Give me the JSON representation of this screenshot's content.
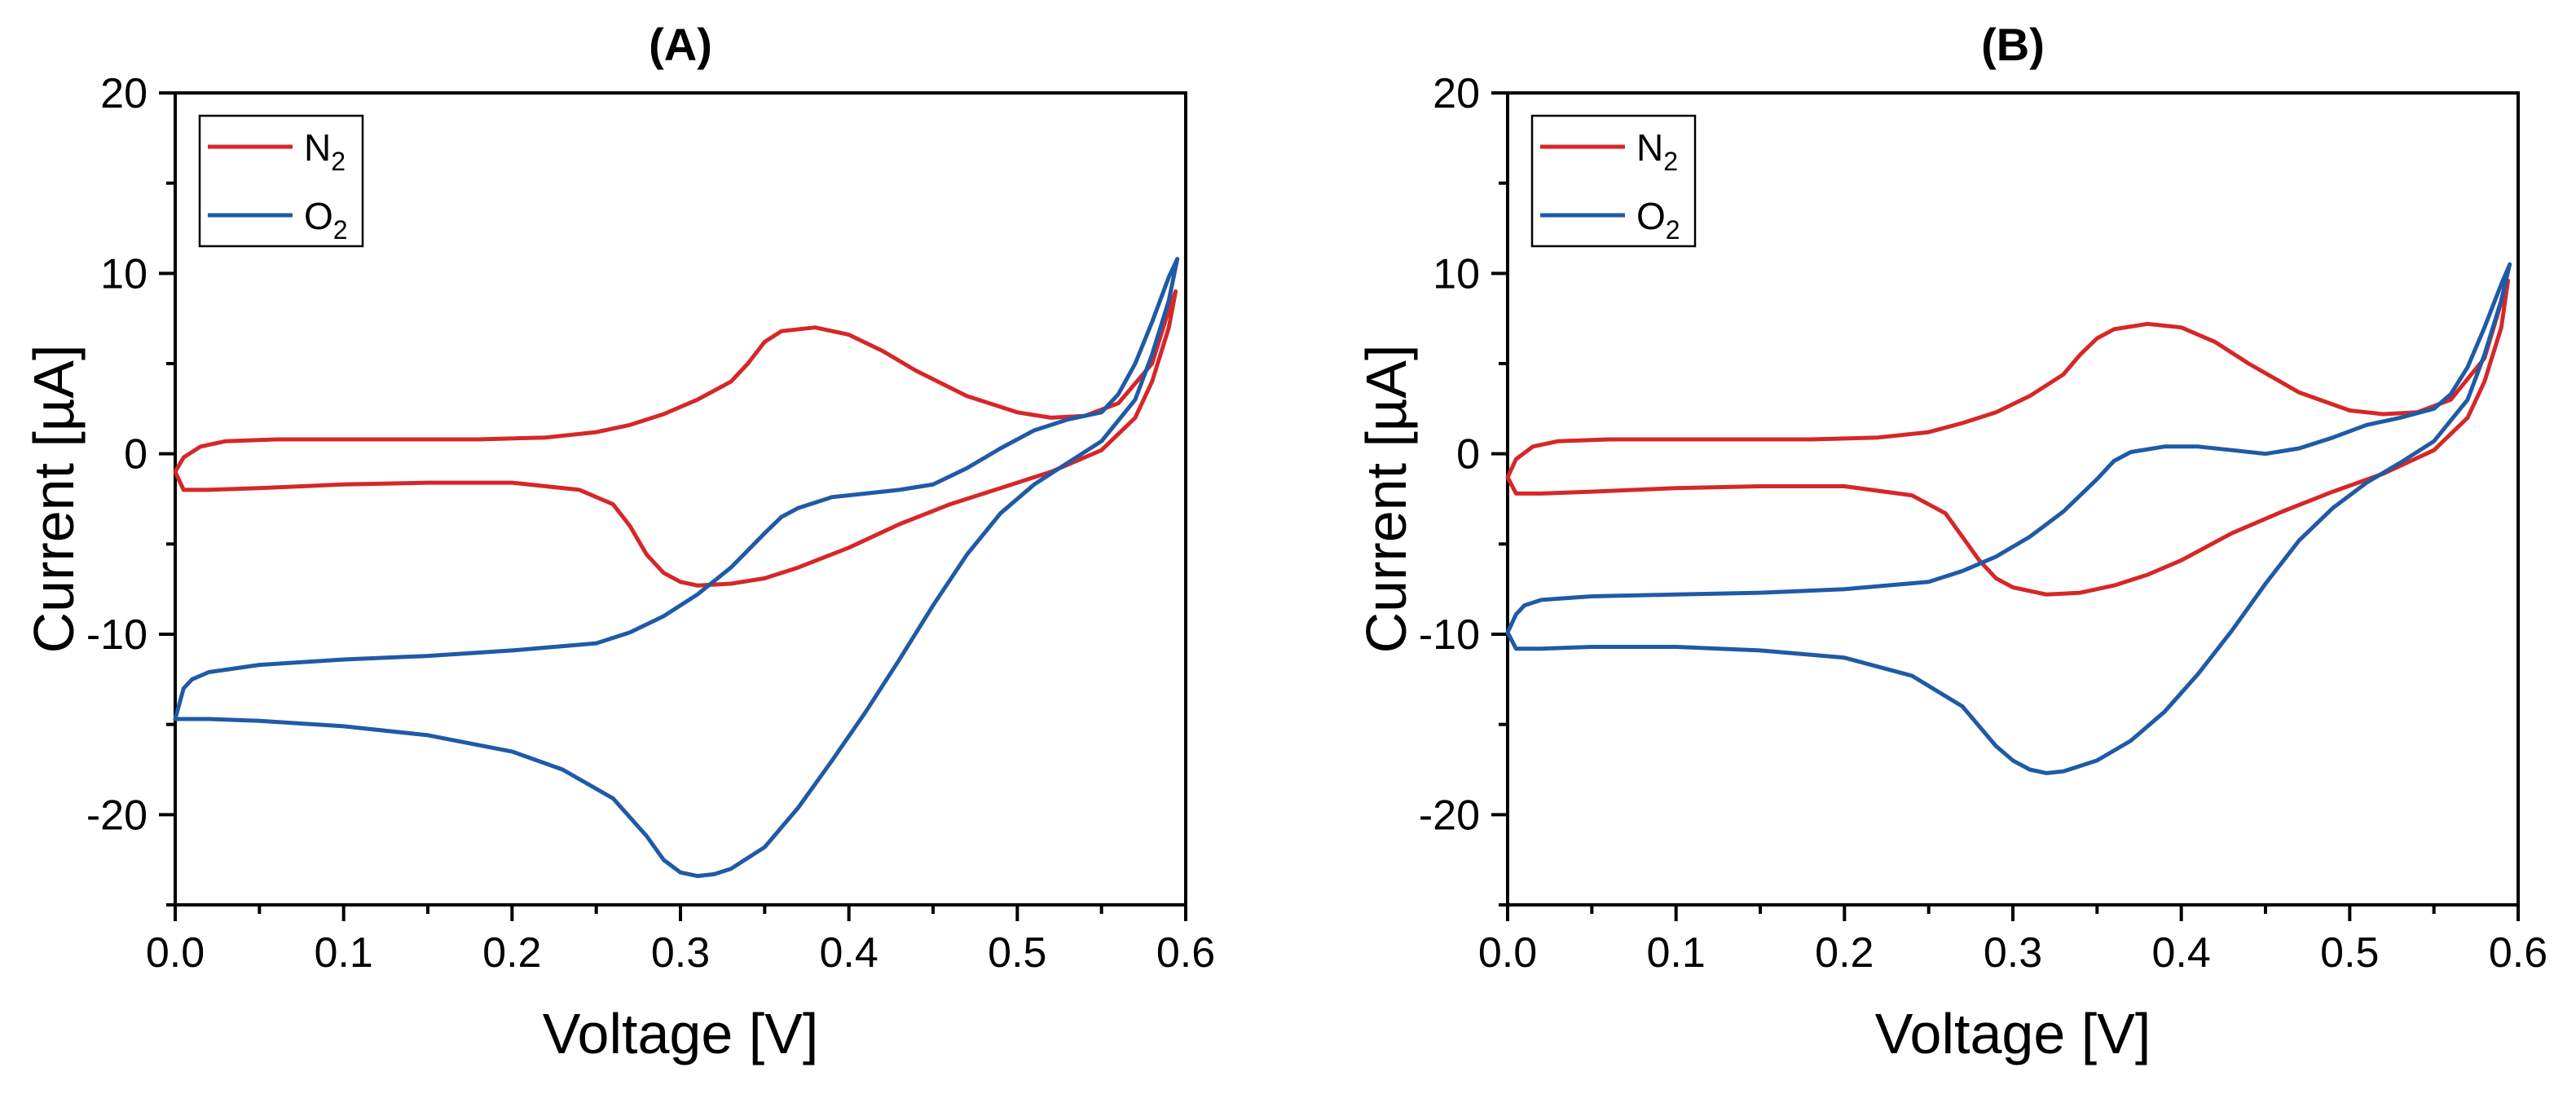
{
  "colors": {
    "N2": "#d62728",
    "O2": "#1f5aa6",
    "axis": "#000000"
  },
  "chart_data": [
    {
      "type": "line",
      "title": "(A)",
      "xlabel": "Voltage [V]",
      "ylabel": "Current [µA]",
      "xlim": [
        0.0,
        0.6
      ],
      "ylim": [
        -25,
        20
      ],
      "xticks": [
        "0.0",
        "0.1",
        "0.2",
        "0.3",
        "0.4",
        "0.5",
        "0.6"
      ],
      "yticks": [
        "20",
        "10",
        "0",
        "-10",
        "-20"
      ],
      "grid": false,
      "legend": "top-left",
      "series": [
        {
          "name": "N₂",
          "base": "N",
          "sub": "2",
          "color": "#d62728",
          "points": [
            [
              0.0,
              -1.0
            ],
            [
              0.005,
              -2.0
            ],
            [
              0.02,
              -2.0
            ],
            [
              0.05,
              -1.9
            ],
            [
              0.1,
              -1.7
            ],
            [
              0.15,
              -1.6
            ],
            [
              0.2,
              -1.6
            ],
            [
              0.24,
              -2.0
            ],
            [
              0.26,
              -2.8
            ],
            [
              0.27,
              -4.0
            ],
            [
              0.28,
              -5.6
            ],
            [
              0.29,
              -6.6
            ],
            [
              0.3,
              -7.1
            ],
            [
              0.31,
              -7.3
            ],
            [
              0.33,
              -7.2
            ],
            [
              0.35,
              -6.9
            ],
            [
              0.37,
              -6.3
            ],
            [
              0.4,
              -5.2
            ],
            [
              0.43,
              -3.9
            ],
            [
              0.46,
              -2.8
            ],
            [
              0.49,
              -1.9
            ],
            [
              0.52,
              -1.0
            ],
            [
              0.55,
              0.2
            ],
            [
              0.57,
              2.0
            ],
            [
              0.58,
              4.0
            ],
            [
              0.59,
              7.0
            ],
            [
              0.594,
              9.0
            ],
            [
              0.59,
              8.0
            ],
            [
              0.58,
              5.0
            ],
            [
              0.56,
              2.8
            ],
            [
              0.54,
              2.1
            ],
            [
              0.52,
              2.0
            ],
            [
              0.5,
              2.3
            ],
            [
              0.47,
              3.2
            ],
            [
              0.44,
              4.6
            ],
            [
              0.42,
              5.7
            ],
            [
              0.4,
              6.6
            ],
            [
              0.38,
              7.0
            ],
            [
              0.36,
              6.8
            ],
            [
              0.35,
              6.2
            ],
            [
              0.34,
              5.0
            ],
            [
              0.33,
              4.0
            ],
            [
              0.31,
              3.0
            ],
            [
              0.29,
              2.2
            ],
            [
              0.27,
              1.6
            ],
            [
              0.25,
              1.2
            ],
            [
              0.22,
              0.9
            ],
            [
              0.18,
              0.8
            ],
            [
              0.12,
              0.8
            ],
            [
              0.06,
              0.8
            ],
            [
              0.03,
              0.7
            ],
            [
              0.015,
              0.4
            ],
            [
              0.005,
              -0.2
            ],
            [
              0.0,
              -1.0
            ]
          ]
        },
        {
          "name": "O₂",
          "base": "O",
          "sub": "2",
          "color": "#1f5aa6",
          "points": [
            [
              0.0,
              -14.7
            ],
            [
              0.02,
              -14.7
            ],
            [
              0.05,
              -14.8
            ],
            [
              0.1,
              -15.1
            ],
            [
              0.15,
              -15.6
            ],
            [
              0.2,
              -16.5
            ],
            [
              0.23,
              -17.5
            ],
            [
              0.26,
              -19.1
            ],
            [
              0.28,
              -21.2
            ],
            [
              0.29,
              -22.5
            ],
            [
              0.3,
              -23.2
            ],
            [
              0.31,
              -23.4
            ],
            [
              0.32,
              -23.3
            ],
            [
              0.33,
              -23.0
            ],
            [
              0.35,
              -21.8
            ],
            [
              0.37,
              -19.6
            ],
            [
              0.39,
              -17.0
            ],
            [
              0.41,
              -14.3
            ],
            [
              0.43,
              -11.4
            ],
            [
              0.45,
              -8.4
            ],
            [
              0.47,
              -5.6
            ],
            [
              0.49,
              -3.3
            ],
            [
              0.51,
              -1.7
            ],
            [
              0.53,
              -0.5
            ],
            [
              0.55,
              0.7
            ],
            [
              0.57,
              3.0
            ],
            [
              0.58,
              5.5
            ],
            [
              0.59,
              8.5
            ],
            [
              0.595,
              10.8
            ],
            [
              0.59,
              9.8
            ],
            [
              0.58,
              7.3
            ],
            [
              0.57,
              5.0
            ],
            [
              0.56,
              3.3
            ],
            [
              0.55,
              2.3
            ],
            [
              0.53,
              1.9
            ],
            [
              0.51,
              1.3
            ],
            [
              0.49,
              0.3
            ],
            [
              0.47,
              -0.8
            ],
            [
              0.45,
              -1.7
            ],
            [
              0.43,
              -2.0
            ],
            [
              0.41,
              -2.2
            ],
            [
              0.39,
              -2.4
            ],
            [
              0.37,
              -3.0
            ],
            [
              0.36,
              -3.5
            ],
            [
              0.35,
              -4.4
            ],
            [
              0.33,
              -6.3
            ],
            [
              0.31,
              -7.8
            ],
            [
              0.29,
              -9.0
            ],
            [
              0.27,
              -9.9
            ],
            [
              0.25,
              -10.5
            ],
            [
              0.2,
              -10.9
            ],
            [
              0.15,
              -11.2
            ],
            [
              0.1,
              -11.4
            ],
            [
              0.05,
              -11.7
            ],
            [
              0.02,
              -12.1
            ],
            [
              0.01,
              -12.5
            ],
            [
              0.005,
              -13.0
            ],
            [
              0.0,
              -14.7
            ]
          ]
        }
      ]
    },
    {
      "type": "line",
      "title": "(B)",
      "xlabel": "Voltage [V]",
      "ylabel": "Current [µA]",
      "xlim": [
        0.0,
        0.6
      ],
      "ylim": [
        -25,
        20
      ],
      "xticks": [
        "0.0",
        "0.1",
        "0.2",
        "0.3",
        "0.4",
        "0.5",
        "0.6"
      ],
      "yticks": [
        "20",
        "10",
        "0",
        "-10",
        "-20"
      ],
      "grid": false,
      "legend": "top-left",
      "series": [
        {
          "name": "N₂",
          "base": "N",
          "sub": "2",
          "color": "#d62728",
          "points": [
            [
              0.0,
              -1.3
            ],
            [
              0.005,
              -2.2
            ],
            [
              0.02,
              -2.2
            ],
            [
              0.05,
              -2.1
            ],
            [
              0.1,
              -1.9
            ],
            [
              0.15,
              -1.8
            ],
            [
              0.2,
              -1.8
            ],
            [
              0.24,
              -2.3
            ],
            [
              0.26,
              -3.3
            ],
            [
              0.27,
              -4.6
            ],
            [
              0.28,
              -5.9
            ],
            [
              0.29,
              -6.9
            ],
            [
              0.3,
              -7.4
            ],
            [
              0.32,
              -7.8
            ],
            [
              0.34,
              -7.7
            ],
            [
              0.36,
              -7.3
            ],
            [
              0.38,
              -6.7
            ],
            [
              0.4,
              -5.9
            ],
            [
              0.43,
              -4.4
            ],
            [
              0.46,
              -3.2
            ],
            [
              0.49,
              -2.1
            ],
            [
              0.52,
              -1.1
            ],
            [
              0.55,
              0.2
            ],
            [
              0.57,
              2.0
            ],
            [
              0.58,
              4.0
            ],
            [
              0.59,
              7.0
            ],
            [
              0.594,
              9.6
            ],
            [
              0.59,
              8.4
            ],
            [
              0.58,
              5.3
            ],
            [
              0.56,
              3.0
            ],
            [
              0.54,
              2.3
            ],
            [
              0.52,
              2.2
            ],
            [
              0.5,
              2.4
            ],
            [
              0.47,
              3.4
            ],
            [
              0.44,
              5.0
            ],
            [
              0.42,
              6.2
            ],
            [
              0.4,
              7.0
            ],
            [
              0.38,
              7.2
            ],
            [
              0.36,
              6.9
            ],
            [
              0.35,
              6.4
            ],
            [
              0.34,
              5.5
            ],
            [
              0.33,
              4.4
            ],
            [
              0.31,
              3.2
            ],
            [
              0.29,
              2.3
            ],
            [
              0.27,
              1.7
            ],
            [
              0.25,
              1.2
            ],
            [
              0.22,
              0.9
            ],
            [
              0.18,
              0.8
            ],
            [
              0.12,
              0.8
            ],
            [
              0.06,
              0.8
            ],
            [
              0.03,
              0.7
            ],
            [
              0.015,
              0.4
            ],
            [
              0.005,
              -0.3
            ],
            [
              0.0,
              -1.3
            ]
          ]
        },
        {
          "name": "O₂",
          "base": "O",
          "sub": "2",
          "color": "#1f5aa6",
          "points": [
            [
              0.0,
              -9.9
            ],
            [
              0.005,
              -10.8
            ],
            [
              0.02,
              -10.8
            ],
            [
              0.05,
              -10.7
            ],
            [
              0.1,
              -10.7
            ],
            [
              0.15,
              -10.9
            ],
            [
              0.2,
              -11.3
            ],
            [
              0.24,
              -12.3
            ],
            [
              0.27,
              -14.0
            ],
            [
              0.29,
              -16.2
            ],
            [
              0.3,
              -17.0
            ],
            [
              0.31,
              -17.5
            ],
            [
              0.32,
              -17.7
            ],
            [
              0.33,
              -17.6
            ],
            [
              0.35,
              -17.0
            ],
            [
              0.37,
              -15.9
            ],
            [
              0.39,
              -14.3
            ],
            [
              0.41,
              -12.2
            ],
            [
              0.43,
              -9.8
            ],
            [
              0.45,
              -7.2
            ],
            [
              0.47,
              -4.8
            ],
            [
              0.49,
              -3.0
            ],
            [
              0.51,
              -1.6
            ],
            [
              0.53,
              -0.5
            ],
            [
              0.55,
              0.7
            ],
            [
              0.57,
              3.0
            ],
            [
              0.58,
              5.5
            ],
            [
              0.59,
              8.5
            ],
            [
              0.595,
              10.5
            ],
            [
              0.59,
              9.4
            ],
            [
              0.58,
              7.0
            ],
            [
              0.57,
              4.8
            ],
            [
              0.56,
              3.3
            ],
            [
              0.55,
              2.5
            ],
            [
              0.53,
              2.0
            ],
            [
              0.51,
              1.6
            ],
            [
              0.49,
              0.9
            ],
            [
              0.47,
              0.3
            ],
            [
              0.45,
              0.0
            ],
            [
              0.43,
              0.2
            ],
            [
              0.41,
              0.4
            ],
            [
              0.39,
              0.4
            ],
            [
              0.37,
              0.1
            ],
            [
              0.36,
              -0.4
            ],
            [
              0.35,
              -1.4
            ],
            [
              0.33,
              -3.2
            ],
            [
              0.31,
              -4.6
            ],
            [
              0.29,
              -5.7
            ],
            [
              0.27,
              -6.5
            ],
            [
              0.25,
              -7.1
            ],
            [
              0.2,
              -7.5
            ],
            [
              0.15,
              -7.7
            ],
            [
              0.1,
              -7.8
            ],
            [
              0.05,
              -7.9
            ],
            [
              0.02,
              -8.1
            ],
            [
              0.01,
              -8.4
            ],
            [
              0.005,
              -8.9
            ],
            [
              0.0,
              -9.9
            ]
          ]
        }
      ]
    }
  ]
}
